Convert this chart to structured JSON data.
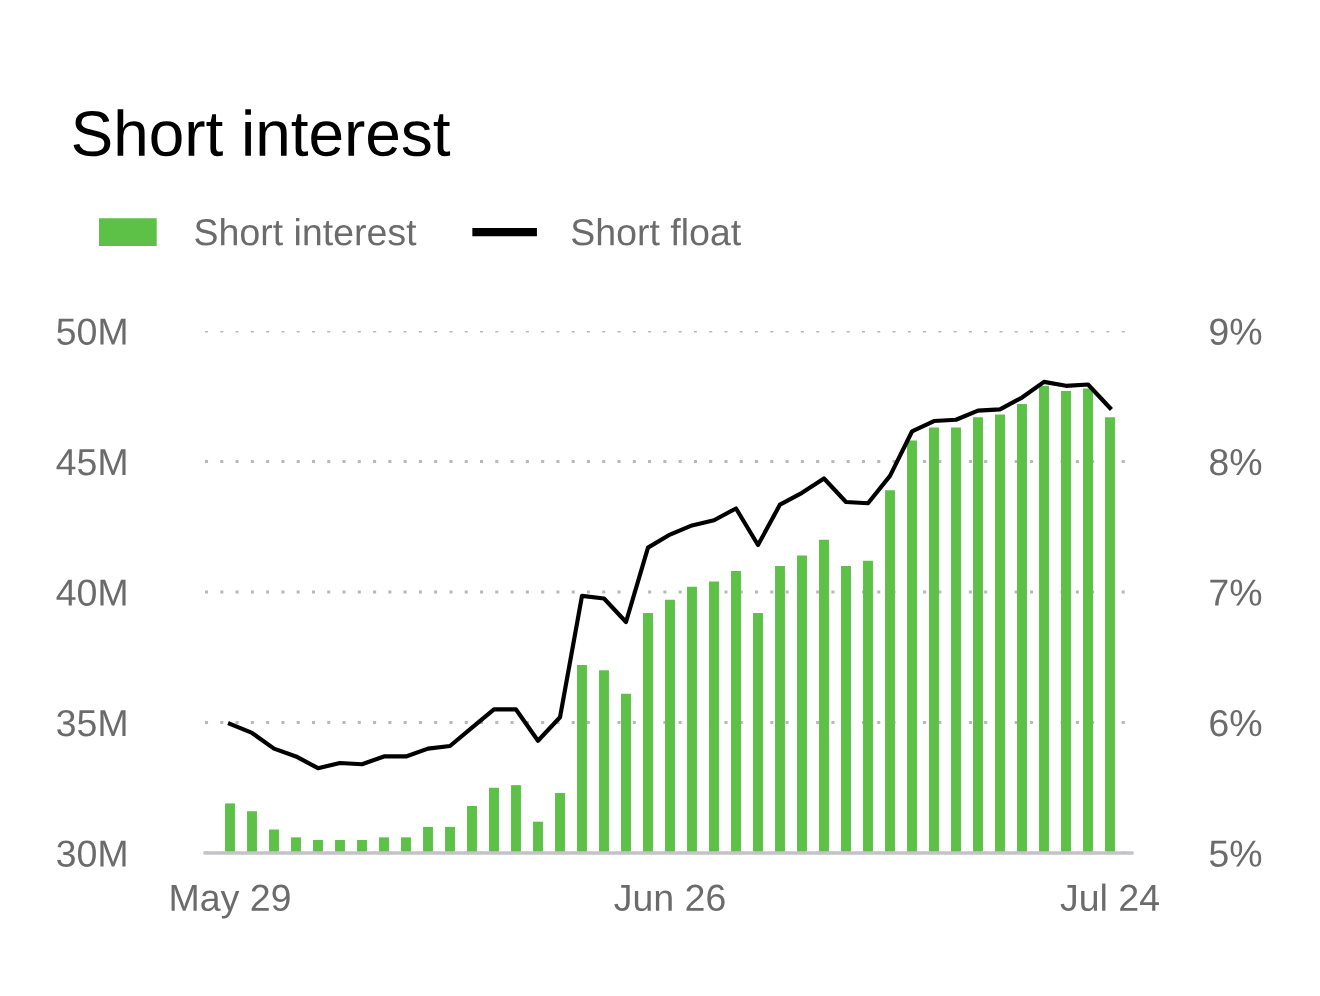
{
  "chart_data": {
    "type": "bar",
    "title": "Short interest",
    "categories": [
      "May 29",
      null,
      null,
      null,
      null,
      null,
      null,
      null,
      null,
      null,
      null,
      null,
      null,
      null,
      null,
      null,
      null,
      null,
      null,
      null,
      "Jun 26",
      null,
      null,
      null,
      null,
      null,
      null,
      null,
      null,
      null,
      null,
      null,
      null,
      null,
      null,
      null,
      null,
      null,
      null,
      null,
      "Jul 24"
    ],
    "series": [
      {
        "name": "Short interest",
        "color": "#5cc146",
        "values": [
          31.9,
          31.6,
          30.9,
          30.6,
          30.5,
          30.5,
          30.5,
          30.6,
          30.6,
          31.0,
          31.0,
          31.8,
          32.5,
          32.6,
          31.2,
          32.3,
          37.2,
          37.0,
          36.1,
          39.2,
          39.7,
          40.2,
          40.4,
          40.8,
          39.2,
          41.0,
          41.4,
          42.0,
          41.0,
          41.2,
          43.9,
          45.8,
          46.3,
          46.3,
          46.7,
          46.8,
          47.2,
          47.9,
          47.7,
          47.8,
          46.7
        ]
      },
      {
        "name": "Short float",
        "type": "line",
        "axis": "y2",
        "color": "#000000",
        "values": [
          5.99,
          5.92,
          5.8,
          5.74,
          5.65,
          5.69,
          5.68,
          5.74,
          5.74,
          5.8,
          5.82,
          5.96,
          6.1,
          6.1,
          5.86,
          6.04,
          6.97,
          6.95,
          6.77,
          7.34,
          7.44,
          7.51,
          7.55,
          7.64,
          7.36,
          7.67,
          7.76,
          7.87,
          7.69,
          7.68,
          7.89,
          8.23,
          8.31,
          8.32,
          8.39,
          8.4,
          8.49,
          8.61,
          8.58,
          8.59,
          8.41
        ]
      }
    ],
    "ylim": [
      30,
      50
    ],
    "yticks": [
      {
        "value": 30,
        "label": "30M"
      },
      {
        "value": 35,
        "label": "35M"
      },
      {
        "value": 40,
        "label": "40M"
      },
      {
        "value": 45,
        "label": "45M"
      },
      {
        "value": 50,
        "label": "50M"
      }
    ],
    "y2lim": [
      5,
      9
    ],
    "y2ticks": [
      {
        "value": 5,
        "label": "5%"
      },
      {
        "value": 6,
        "label": "6%"
      },
      {
        "value": 7,
        "label": "7%"
      },
      {
        "value": 8,
        "label": "8%"
      },
      {
        "value": 9,
        "label": "9%"
      }
    ],
    "grid": "y",
    "legend": "top left",
    "marker": "none",
    "line_style": "solid"
  }
}
